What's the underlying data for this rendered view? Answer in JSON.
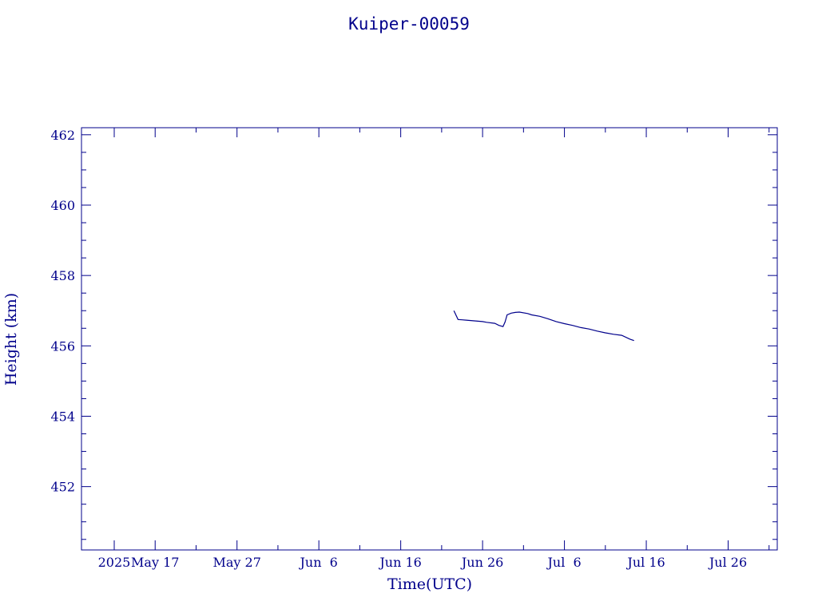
{
  "chart_data": {
    "type": "line",
    "title": "Kuiper-00059",
    "xlabel": "Time(UTC)",
    "ylabel": "Height (km)",
    "ylim": [
      450.2,
      462.2
    ],
    "xlim": [
      "2025-05-08",
      "2025-08-01"
    ],
    "grid": false,
    "colors": {
      "axis": "#00008b",
      "line": "#00008b",
      "text": "#00008b"
    },
    "yticks": [
      {
        "label": "452",
        "value": 452
      },
      {
        "label": "454",
        "value": 454
      },
      {
        "label": "456",
        "value": 456
      },
      {
        "label": "458",
        "value": 458
      },
      {
        "label": "460",
        "value": 460
      },
      {
        "label": "462",
        "value": 462
      }
    ],
    "xticks": [
      {
        "label": "2025",
        "date": "2025-05-12"
      },
      {
        "label": "May 17",
        "date": "2025-05-17"
      },
      {
        "label": "May 27",
        "date": "2025-05-27"
      },
      {
        "label": "Jun  6",
        "date": "2025-06-06"
      },
      {
        "label": "Jun 16",
        "date": "2025-06-16"
      },
      {
        "label": "Jun 26",
        "date": "2025-06-26"
      },
      {
        "label": "Jul  6",
        "date": "2025-07-06"
      },
      {
        "label": "Jul 16",
        "date": "2025-07-16"
      },
      {
        "label": "Jul 26",
        "date": "2025-07-26"
      }
    ],
    "series": [
      {
        "x": [
          "2025-06-22 12:00",
          "2025-06-23 00:00",
          "2025-06-23 12:00",
          "2025-06-24 00:00",
          "2025-06-25 00:00",
          "2025-06-26 00:00",
          "2025-06-26 12:00",
          "2025-06-27 12:00",
          "2025-06-28 00:00",
          "2025-06-28 12:00",
          "2025-06-28 18:00",
          "2025-06-29 00:00",
          "2025-06-29 12:00",
          "2025-06-30 00:00",
          "2025-06-30 12:00",
          "2025-07-01 12:00",
          "2025-07-02 00:00",
          "2025-07-03 00:00",
          "2025-07-04 00:00",
          "2025-07-05 00:00",
          "2025-07-06 00:00",
          "2025-07-07 00:00",
          "2025-07-08 00:00",
          "2025-07-09 00:00",
          "2025-07-10 00:00",
          "2025-07-11 00:00",
          "2025-07-12 00:00",
          "2025-07-13 00:00",
          "2025-07-14 00:00",
          "2025-07-14 12:00"
        ],
        "y": [
          457.0,
          456.75,
          456.74,
          456.73,
          456.71,
          456.69,
          456.67,
          456.64,
          456.58,
          456.55,
          456.68,
          456.88,
          456.93,
          456.95,
          456.96,
          456.92,
          456.88,
          456.84,
          456.77,
          456.69,
          456.63,
          456.58,
          456.52,
          456.48,
          456.42,
          456.37,
          456.33,
          456.3,
          456.19,
          456.15
        ]
      }
    ]
  }
}
